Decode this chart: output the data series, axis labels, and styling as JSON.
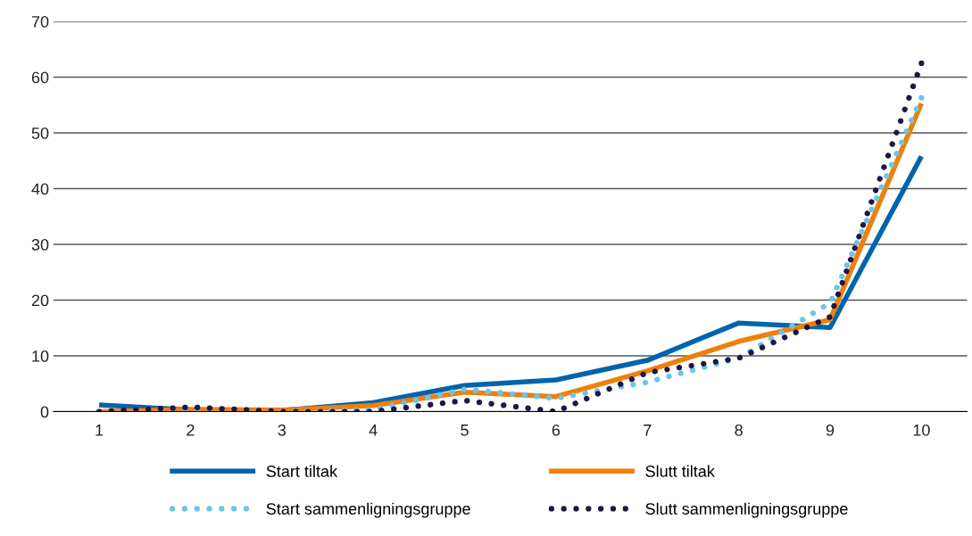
{
  "chart_data": {
    "type": "line",
    "categories": [
      "1",
      "2",
      "3",
      "4",
      "5",
      "6",
      "7",
      "8",
      "9",
      "10"
    ],
    "series": [
      {
        "name": "Start tiltak",
        "color": "#0064ad",
        "line_style": "solid",
        "values": [
          1.2,
          0.3,
          0.2,
          1.6,
          4.7,
          5.7,
          9.2,
          15.9,
          15.1,
          45.8
        ]
      },
      {
        "name": "Slutt tiltak",
        "color": "#f07f09",
        "line_style": "solid",
        "values": [
          0,
          0.4,
          0.3,
          1.1,
          3.5,
          2.7,
          7.3,
          12.6,
          16.5,
          55.3
        ]
      },
      {
        "name": "Start sammenligningsgruppe",
        "color": "#6cc5e6",
        "line_style": "dotted",
        "values": [
          0,
          0,
          0,
          0.3,
          4.0,
          2.4,
          5.3,
          9.6,
          19.5,
          56.3
        ]
      },
      {
        "name": "Slutt sammenligningsgruppe",
        "color": "#1f1646",
        "line_style": "dotted",
        "values": [
          0,
          0.8,
          0,
          0,
          2.0,
          0,
          7.0,
          9.6,
          17.0,
          62.5
        ]
      }
    ],
    "ylim": [
      0,
      70
    ],
    "yticks": [
      0,
      10,
      20,
      30,
      40,
      50,
      60,
      70
    ],
    "grid": "y",
    "legend": "bottom",
    "marker": "none"
  }
}
